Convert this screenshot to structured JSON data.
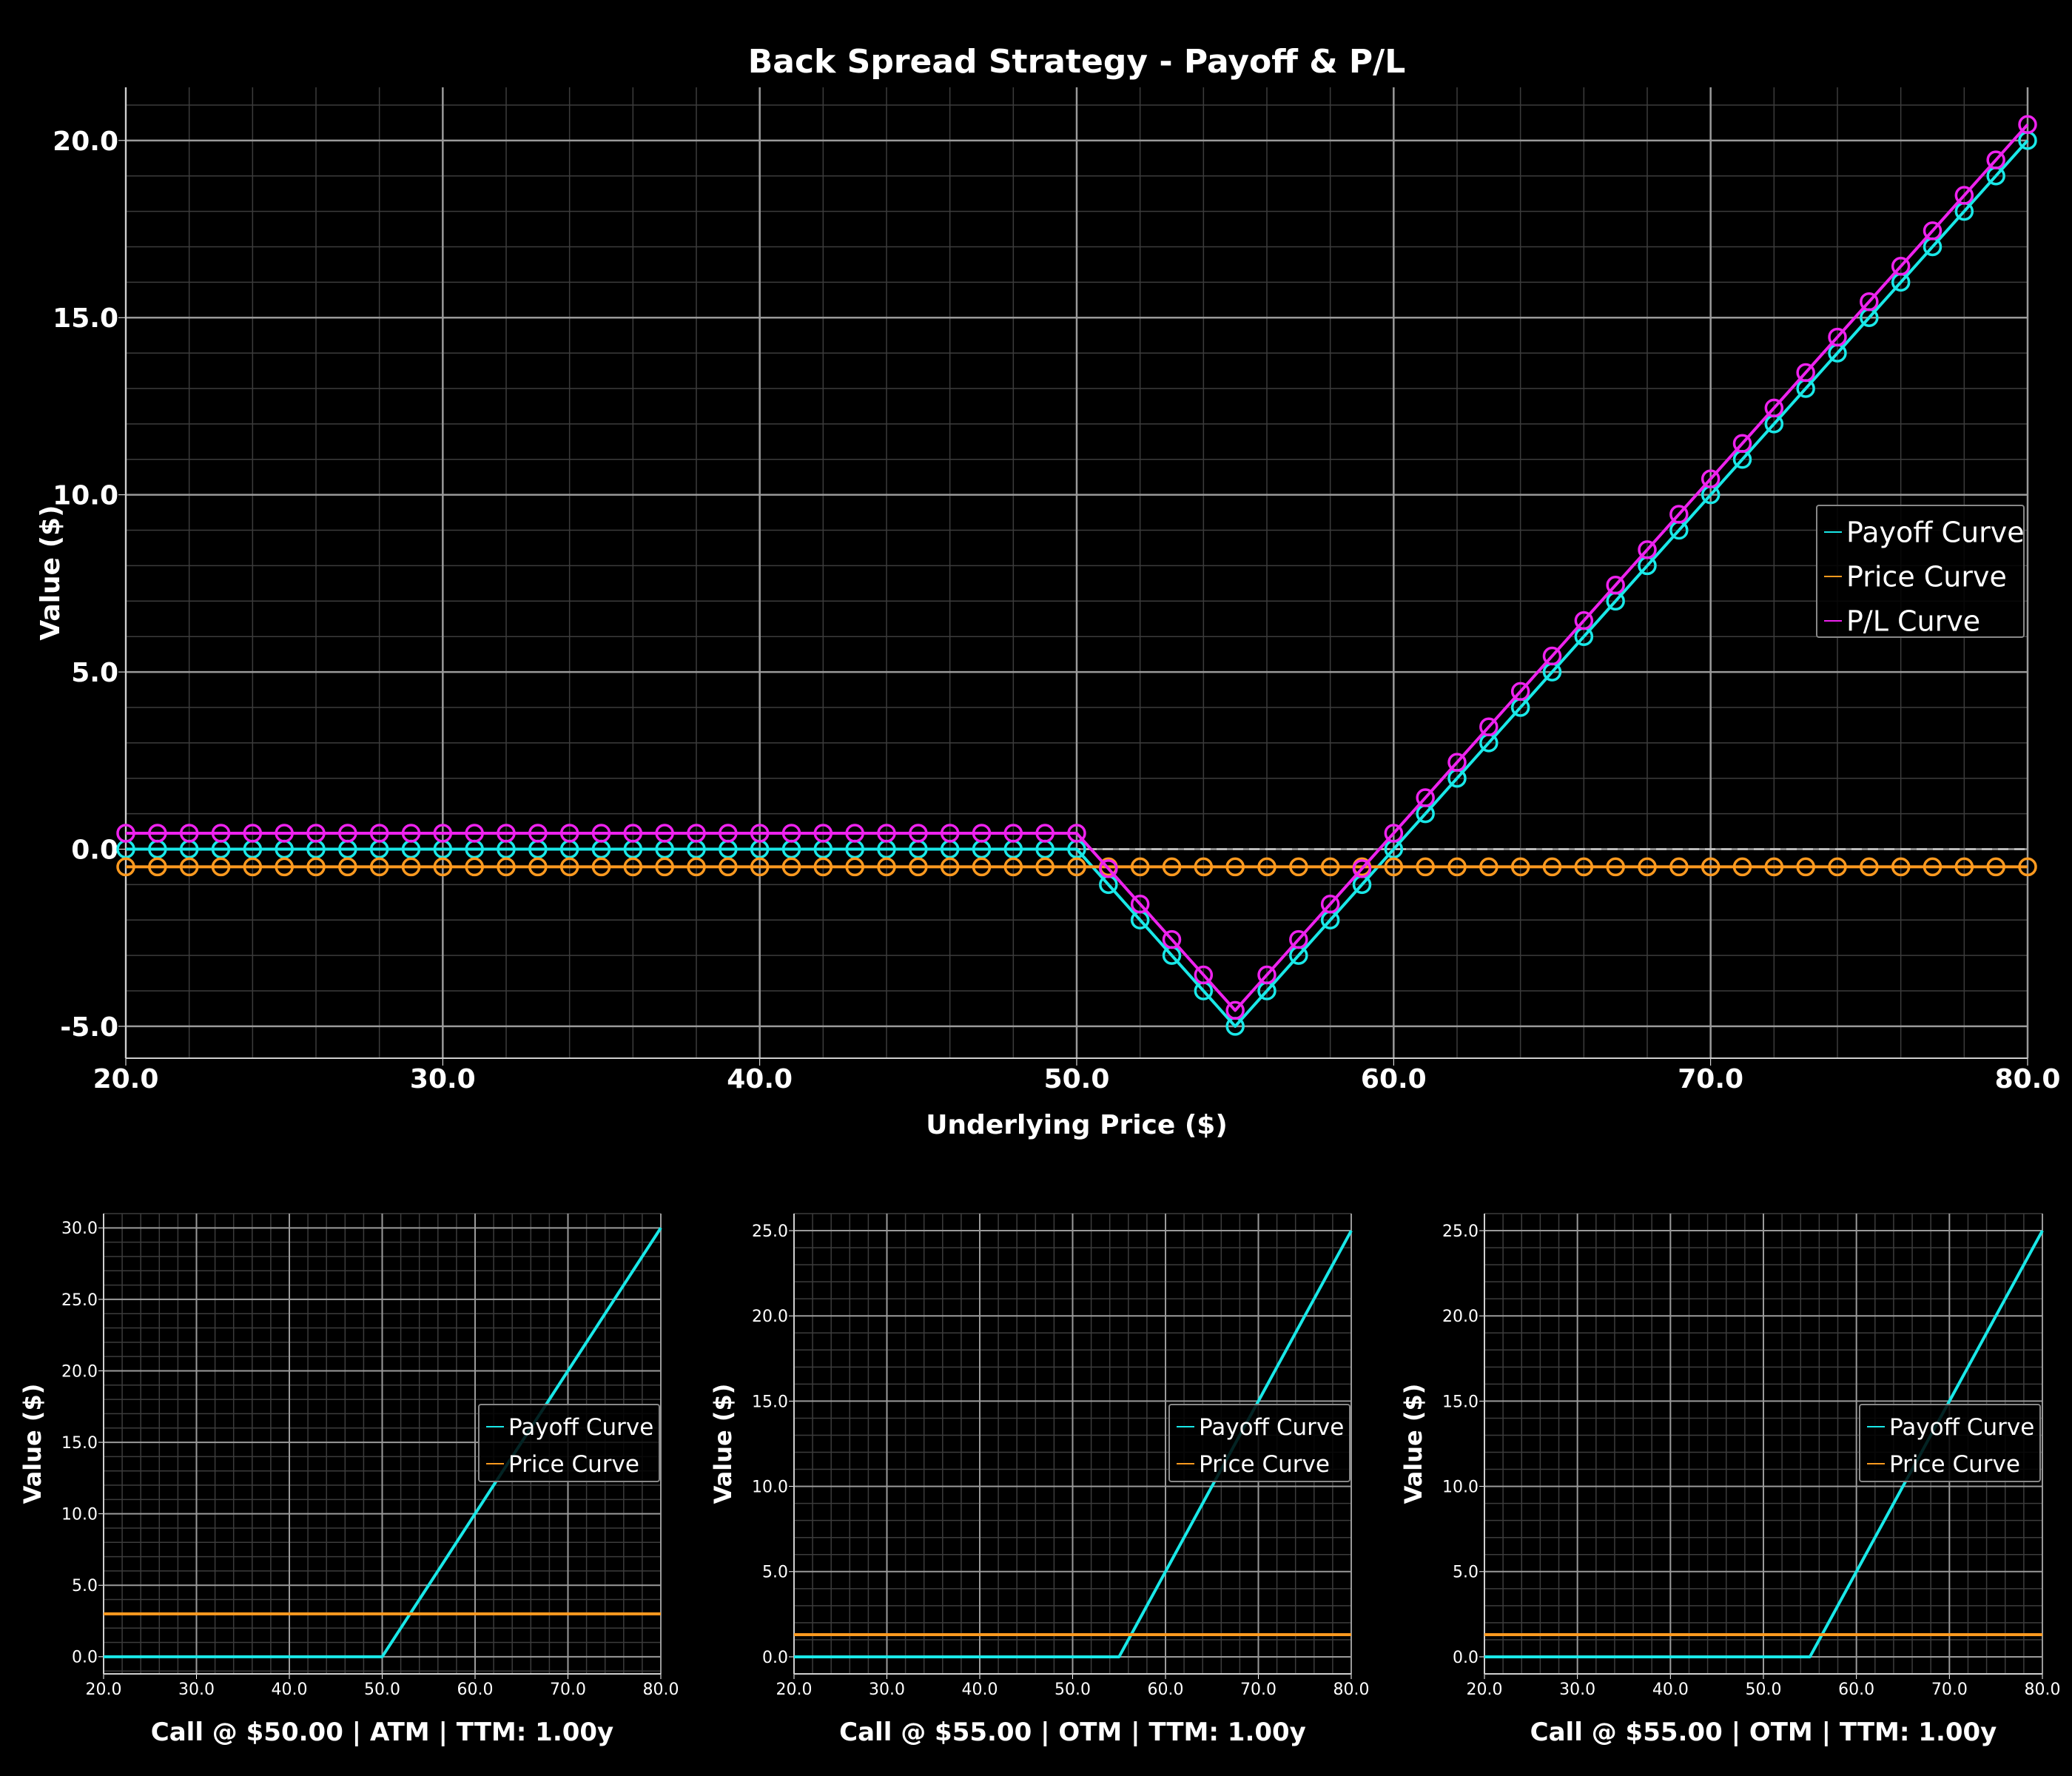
{
  "colors": {
    "background": "#000000",
    "payoff": "#19e8e8",
    "price": "#ff9a1f",
    "pl": "#ee22ee",
    "grid_major": "#9a9a9a",
    "grid_minor": "#3c3c3c",
    "zero_line": "#cccccc",
    "text": "#ffffff"
  },
  "chart_data": [
    {
      "type": "line",
      "title": "Back Spread Strategy - Payoff & P/L",
      "xlabel": "Underlying Price ($)",
      "ylabel": "Value ($)",
      "xlim": [
        20,
        80
      ],
      "ylim": [
        -5.9,
        21.5
      ],
      "x_ticks": [
        "20.0",
        "30.0",
        "40.0",
        "50.0",
        "60.0",
        "70.0",
        "80.0"
      ],
      "y_ticks": [
        "-5.0",
        "0.0",
        "5.0",
        "10.0",
        "15.0",
        "20.0"
      ],
      "grid": true,
      "zero_line": true,
      "markers": "open-circle",
      "legend": "center-right",
      "series": [
        {
          "name": "Payoff Curve",
          "color_key": "payoff",
          "points": [
            [
              20,
              0
            ],
            [
              50,
              0
            ],
            [
              55,
              -5
            ],
            [
              80,
              20
            ]
          ]
        },
        {
          "name": "Price Curve",
          "color_key": "price",
          "points": [
            [
              20,
              -0.5
            ],
            [
              80,
              -0.5
            ]
          ]
        },
        {
          "name": "P/L Curve",
          "color_key": "pl",
          "points": [
            [
              20,
              0.45
            ],
            [
              50,
              0.45
            ],
            [
              55,
              -4.55
            ],
            [
              80,
              20.45
            ]
          ]
        }
      ]
    },
    {
      "type": "line",
      "title": "Call @ $50.00 | ATM | TTM: 1.00y",
      "ylabel": "Value ($)",
      "xlim": [
        20,
        80
      ],
      "ylim": [
        -1.2,
        31
      ],
      "x_ticks": [
        "20.0",
        "30.0",
        "40.0",
        "50.0",
        "60.0",
        "70.0",
        "80.0"
      ],
      "y_ticks": [
        "0.0",
        "5.0",
        "10.0",
        "15.0",
        "20.0",
        "25.0",
        "30.0"
      ],
      "grid": true,
      "legend": "center-right",
      "series": [
        {
          "name": "Payoff Curve",
          "color_key": "payoff",
          "points": [
            [
              20,
              0
            ],
            [
              50,
              0
            ],
            [
              80,
              30
            ]
          ]
        },
        {
          "name": "Price Curve",
          "color_key": "price",
          "points": [
            [
              20,
              3.0
            ],
            [
              80,
              3.0
            ]
          ]
        }
      ]
    },
    {
      "type": "line",
      "title": "Call @ $55.00 | OTM | TTM: 1.00y",
      "ylabel": "Value ($)",
      "xlim": [
        20,
        80
      ],
      "ylim": [
        -1.0,
        26
      ],
      "x_ticks": [
        "20.0",
        "30.0",
        "40.0",
        "50.0",
        "60.0",
        "70.0",
        "80.0"
      ],
      "y_ticks": [
        "0.0",
        "5.0",
        "10.0",
        "15.0",
        "20.0",
        "25.0"
      ],
      "grid": true,
      "legend": "center-right",
      "series": [
        {
          "name": "Payoff Curve",
          "color_key": "payoff",
          "points": [
            [
              20,
              0
            ],
            [
              55,
              0
            ],
            [
              80,
              25
            ]
          ]
        },
        {
          "name": "Price Curve",
          "color_key": "price",
          "points": [
            [
              20,
              1.3
            ],
            [
              80,
              1.3
            ]
          ]
        }
      ]
    },
    {
      "type": "line",
      "title": "Call @ $55.00 | OTM | TTM: 1.00y",
      "ylabel": "Value ($)",
      "xlim": [
        20,
        80
      ],
      "ylim": [
        -1.0,
        26
      ],
      "x_ticks": [
        "20.0",
        "30.0",
        "40.0",
        "50.0",
        "60.0",
        "70.0",
        "80.0"
      ],
      "y_ticks": [
        "0.0",
        "5.0",
        "10.0",
        "15.0",
        "20.0",
        "25.0"
      ],
      "grid": true,
      "legend": "center-right",
      "series": [
        {
          "name": "Payoff Curve",
          "color_key": "payoff",
          "points": [
            [
              20,
              0
            ],
            [
              55,
              0
            ],
            [
              80,
              25
            ]
          ]
        },
        {
          "name": "Price Curve",
          "color_key": "price",
          "points": [
            [
              20,
              1.3
            ],
            [
              80,
              1.3
            ]
          ]
        }
      ]
    }
  ]
}
